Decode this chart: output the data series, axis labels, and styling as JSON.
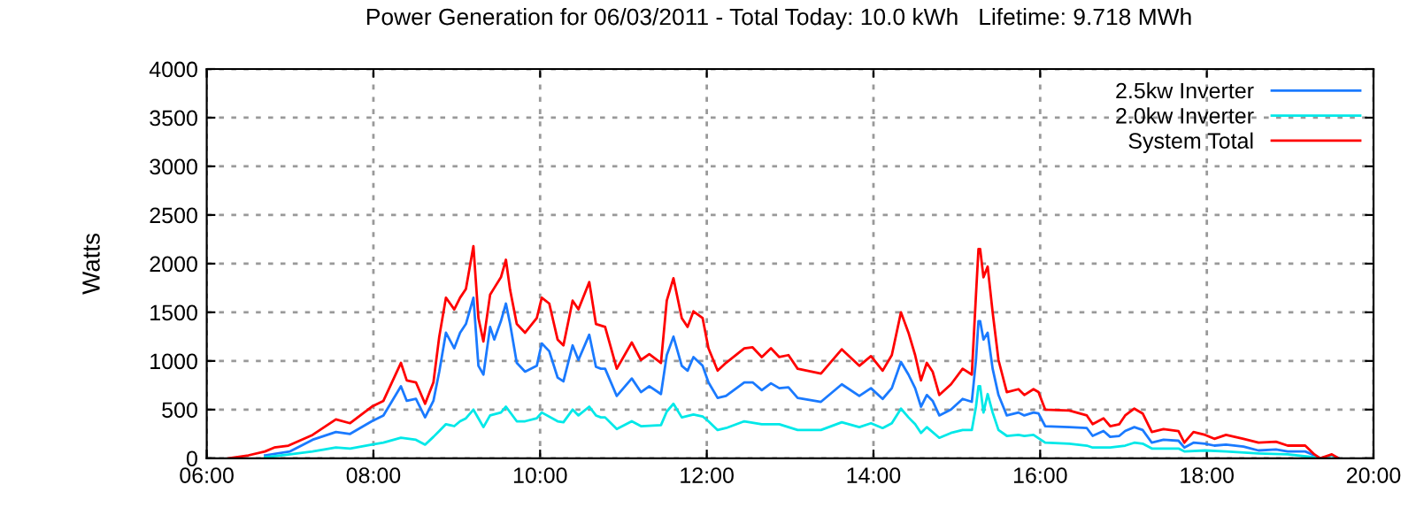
{
  "chart_data": {
    "type": "line",
    "title": "Power Generation for 06/03/2011 - Total Today: 10.0 kWh   Lifetime: 9.718 MWh",
    "ylabel": "Watts",
    "xlim": [
      6,
      20
    ],
    "xticks": [
      {
        "value": 6,
        "label": "06:00"
      },
      {
        "value": 8,
        "label": "08:00"
      },
      {
        "value": 10,
        "label": "10:00"
      },
      {
        "value": 12,
        "label": "12:00"
      },
      {
        "value": 14,
        "label": "14:00"
      },
      {
        "value": 16,
        "label": "16:00"
      },
      {
        "value": 18,
        "label": "18:00"
      },
      {
        "value": 20,
        "label": "20:00"
      }
    ],
    "ylim": [
      0,
      4000
    ],
    "yticks": [
      0,
      500,
      1000,
      1500,
      2000,
      2500,
      3000,
      3500,
      4000
    ],
    "grid": true,
    "legend": "top right",
    "line_style": "solid",
    "marker": "none",
    "series": [
      {
        "name": "2.5kw Inverter",
        "color": "#1a7aff",
        "x": [
          6.7,
          7.0,
          7.27,
          7.55,
          7.72,
          7.98,
          8.12,
          8.33,
          8.4,
          8.51,
          8.62,
          8.72,
          8.79,
          8.87,
          8.97,
          9.04,
          9.11,
          9.2,
          9.26,
          9.32,
          9.4,
          9.45,
          9.53,
          9.59,
          9.64,
          9.72,
          9.82,
          9.96,
          10.02,
          10.11,
          10.21,
          10.28,
          10.39,
          10.46,
          10.59,
          10.67,
          10.73,
          10.78,
          10.92,
          11.1,
          11.21,
          11.31,
          11.45,
          11.52,
          11.6,
          11.7,
          11.77,
          11.84,
          11.95,
          12.02,
          12.13,
          12.23,
          12.45,
          12.55,
          12.66,
          12.77,
          12.87,
          12.98,
          13.09,
          13.37,
          13.62,
          13.83,
          13.97,
          14.11,
          14.22,
          14.33,
          14.42,
          14.5,
          14.57,
          14.64,
          14.71,
          14.79,
          14.93,
          15.07,
          15.18,
          15.23,
          15.26,
          15.28,
          15.32,
          15.37,
          15.43,
          15.5,
          15.6,
          15.74,
          15.81,
          15.92,
          15.98,
          16.06,
          16.35,
          16.56,
          16.63,
          16.76,
          16.84,
          16.95,
          17.02,
          17.13,
          17.23,
          17.34,
          17.48,
          17.66,
          17.73,
          17.84,
          17.98,
          18.09,
          18.23,
          18.44,
          18.62,
          18.83,
          18.97,
          19.18,
          19.29,
          19.36,
          19.5,
          19.58
        ],
        "values": [
          30,
          70,
          190,
          270,
          250,
          380,
          440,
          740,
          590,
          610,
          420,
          590,
          890,
          1290,
          1130,
          1290,
          1380,
          1650,
          950,
          860,
          1350,
          1220,
          1410,
          1590,
          1380,
          980,
          890,
          950,
          1180,
          1100,
          830,
          790,
          1160,
          1010,
          1270,
          940,
          920,
          920,
          640,
          820,
          680,
          740,
          660,
          1060,
          1250,
          950,
          900,
          1040,
          950,
          780,
          620,
          640,
          780,
          780,
          700,
          770,
          720,
          730,
          620,
          580,
          760,
          640,
          720,
          610,
          720,
          990,
          860,
          720,
          530,
          650,
          590,
          440,
          500,
          610,
          580,
          1010,
          1410,
          1410,
          1220,
          1290,
          920,
          650,
          440,
          470,
          440,
          470,
          460,
          330,
          320,
          310,
          230,
          280,
          220,
          230,
          280,
          320,
          290,
          160,
          190,
          180,
          110,
          160,
          150,
          130,
          140,
          120,
          80,
          90,
          70,
          70,
          30,
          0,
          30,
          0
        ]
      },
      {
        "name": "2.0kw Inverter",
        "color": "#00e8e8",
        "x": [
          6.7,
          7.0,
          7.27,
          7.55,
          7.72,
          7.98,
          8.12,
          8.33,
          8.51,
          8.62,
          8.72,
          8.79,
          8.87,
          8.97,
          9.04,
          9.11,
          9.2,
          9.26,
          9.32,
          9.4,
          9.53,
          9.59,
          9.72,
          9.82,
          9.96,
          10.02,
          10.21,
          10.28,
          10.39,
          10.46,
          10.59,
          10.67,
          10.73,
          10.78,
          10.92,
          11.1,
          11.21,
          11.45,
          11.52,
          11.6,
          11.7,
          11.84,
          11.95,
          12.02,
          12.13,
          12.23,
          12.45,
          12.66,
          12.87,
          13.09,
          13.37,
          13.62,
          13.83,
          13.97,
          14.11,
          14.22,
          14.33,
          14.42,
          14.5,
          14.57,
          14.64,
          14.79,
          14.93,
          15.07,
          15.18,
          15.23,
          15.26,
          15.28,
          15.32,
          15.37,
          15.43,
          15.5,
          15.6,
          15.74,
          15.81,
          15.92,
          16.06,
          16.35,
          16.56,
          16.63,
          16.84,
          17.02,
          17.13,
          17.23,
          17.34,
          17.66,
          17.73,
          17.98,
          18.23,
          18.62,
          18.97,
          19.29,
          19.36,
          19.5,
          19.58
        ],
        "values": [
          10,
          40,
          70,
          110,
          100,
          140,
          160,
          210,
          190,
          140,
          220,
          280,
          350,
          330,
          380,
          410,
          500,
          410,
          320,
          440,
          470,
          530,
          380,
          380,
          410,
          470,
          380,
          370,
          500,
          440,
          530,
          440,
          420,
          420,
          300,
          380,
          330,
          340,
          480,
          560,
          420,
          450,
          430,
          380,
          290,
          310,
          380,
          350,
          350,
          290,
          290,
          370,
          320,
          360,
          310,
          360,
          510,
          420,
          350,
          260,
          320,
          210,
          260,
          290,
          290,
          530,
          740,
          740,
          470,
          660,
          470,
          290,
          230,
          240,
          230,
          240,
          160,
          150,
          130,
          110,
          110,
          130,
          160,
          150,
          100,
          100,
          70,
          80,
          70,
          50,
          40,
          10,
          0,
          30,
          0
        ]
      },
      {
        "name": "System Total",
        "color": "#ff0000",
        "x": [
          6.26,
          6.5,
          6.7,
          6.81,
          6.98,
          7.27,
          7.55,
          7.72,
          7.98,
          8.12,
          8.33,
          8.4,
          8.51,
          8.62,
          8.72,
          8.79,
          8.87,
          8.97,
          9.04,
          9.11,
          9.2,
          9.26,
          9.32,
          9.4,
          9.45,
          9.53,
          9.59,
          9.64,
          9.72,
          9.82,
          9.96,
          10.02,
          10.11,
          10.21,
          10.28,
          10.39,
          10.46,
          10.59,
          10.67,
          10.78,
          10.92,
          11.1,
          11.21,
          11.31,
          11.45,
          11.52,
          11.6,
          11.7,
          11.77,
          11.84,
          11.95,
          12.02,
          12.13,
          12.23,
          12.45,
          12.55,
          12.66,
          12.77,
          12.87,
          12.98,
          13.09,
          13.37,
          13.62,
          13.83,
          13.97,
          14.11,
          14.22,
          14.33,
          14.42,
          14.5,
          14.57,
          14.64,
          14.71,
          14.79,
          14.93,
          15.07,
          15.18,
          15.23,
          15.26,
          15.28,
          15.32,
          15.37,
          15.43,
          15.5,
          15.6,
          15.74,
          15.81,
          15.92,
          15.98,
          16.06,
          16.35,
          16.56,
          16.63,
          16.76,
          16.84,
          16.95,
          17.02,
          17.13,
          17.23,
          17.34,
          17.48,
          17.66,
          17.73,
          17.84,
          17.98,
          18.09,
          18.23,
          18.44,
          18.62,
          18.83,
          18.97,
          19.18,
          19.29,
          19.36,
          19.5,
          19.58
        ],
        "values": [
          0,
          30,
          70,
          110,
          130,
          240,
          400,
          360,
          530,
          590,
          980,
          800,
          780,
          560,
          780,
          1250,
          1650,
          1530,
          1650,
          1740,
          2180,
          1440,
          1200,
          1680,
          1750,
          1860,
          2040,
          1730,
          1380,
          1290,
          1440,
          1650,
          1590,
          1220,
          1160,
          1620,
          1530,
          1810,
          1380,
          1350,
          920,
          1190,
          1010,
          1070,
          980,
          1620,
          1850,
          1440,
          1350,
          1510,
          1440,
          1130,
          900,
          980,
          1130,
          1140,
          1040,
          1130,
          1040,
          1060,
          920,
          870,
          1120,
          950,
          1050,
          900,
          1060,
          1500,
          1290,
          1060,
          800,
          980,
          890,
          650,
          760,
          920,
          860,
          1680,
          2150,
          2150,
          1860,
          1970,
          1500,
          1010,
          680,
          710,
          650,
          710,
          680,
          500,
          490,
          440,
          350,
          410,
          330,
          350,
          440,
          510,
          460,
          270,
          300,
          280,
          160,
          270,
          240,
          200,
          240,
          200,
          160,
          170,
          130,
          130,
          40,
          0,
          40,
          0
        ]
      }
    ]
  }
}
